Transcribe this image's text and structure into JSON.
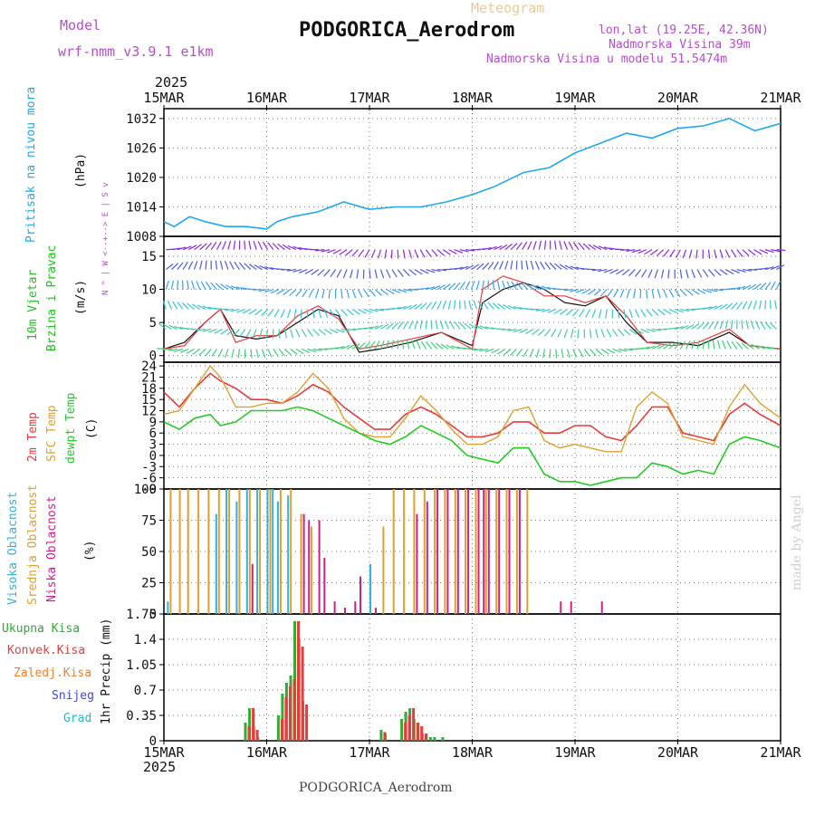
{
  "header": {
    "model_label": "Model",
    "model_name": "wrf-nmm_v3.9.1 e1km",
    "meteogram_label": "Meteogram",
    "station_title": "PODGORICA_Aerodrom",
    "lonlat": "lon,lat (19.25E, 42.36N)",
    "elevation": "Nadmorska Visina 39m",
    "model_elevation": "Nadmorska Visina u modelu 51.5474m",
    "credit": "made by Angel",
    "footer_station": "PODGORICA_Aerodrom"
  },
  "time_axis": {
    "year": "2025",
    "labels": [
      "15MAR",
      "16MAR",
      "17MAR",
      "18MAR",
      "19MAR",
      "20MAR",
      "21MAR"
    ]
  },
  "colors": {
    "pressure": "#1fa8ee",
    "wind_label": "#22c022",
    "temp2m": "#e83c3c",
    "sfc_temp": "#e0a030",
    "dewpoint": "#22cc22",
    "cloud_high": "#33b0e0",
    "cloud_mid": "#e0a030",
    "cloud_low": "#cc2288",
    "precip_total": "#33aa33",
    "precip_conv": "#e83c3c",
    "precip_ice": "#f08030",
    "snow": "#4444dd",
    "grad": "#22bbbb",
    "header_purple": "#b44ed0",
    "meteogram_orange": "#f0c890"
  },
  "chart_data": [
    {
      "type": "line",
      "name": "pressure",
      "ylabel_lines": [
        "Pritisak na nivou mora",
        "(hPa)"
      ],
      "ylim": [
        1008,
        1034
      ],
      "yticks": [
        1008,
        1014,
        1020,
        1026,
        1032
      ],
      "grid": true,
      "x_days": [
        0,
        0.1,
        0.25,
        0.4,
        0.6,
        0.8,
        1.0,
        1.1,
        1.25,
        1.5,
        1.75,
        2.0,
        2.25,
        2.5,
        2.75,
        3.0,
        3.2,
        3.5,
        3.75,
        4.0,
        4.25,
        4.5,
        4.75,
        5.0,
        5.25,
        5.5,
        5.75,
        6.0
      ],
      "series": [
        {
          "values": [
            1011,
            1010,
            1012,
            1011,
            1010,
            1010,
            1009.5,
            1011,
            1012,
            1013,
            1015,
            1013.5,
            1014,
            1014,
            1015,
            1016.5,
            1018,
            1021,
            1022,
            1025,
            1027,
            1029,
            1028,
            1030,
            1030.5,
            1032,
            1029.5,
            1031
          ]
        }
      ]
    },
    {
      "type": "line",
      "name": "wind",
      "ylabel_lines": [
        "10m Vjetar",
        "Brzina i Pravac",
        "(m/s)"
      ],
      "direction_key": "N ^ | W <--+--> E | S v",
      "ylim": [
        -1,
        18
      ],
      "yticks": [
        0,
        5,
        10,
        15
      ],
      "grid": true,
      "x_days": [
        0,
        0.2,
        0.4,
        0.55,
        0.7,
        0.9,
        1.1,
        1.3,
        1.5,
        1.7,
        1.9,
        2.1,
        2.4,
        2.7,
        3.0,
        3.1,
        3.3,
        3.5,
        3.7,
        3.9,
        4.1,
        4.3,
        4.5,
        4.7,
        4.95,
        5.2,
        5.5,
        5.7,
        6.0
      ],
      "series": [
        {
          "values": [
            1,
            2,
            5,
            7,
            3,
            2.5,
            3,
            5,
            7,
            6,
            0.5,
            1,
            2,
            3.5,
            1.5,
            8,
            10,
            11,
            10,
            8,
            7.5,
            9,
            5,
            2,
            2,
            1.5,
            3.5,
            1.5,
            1
          ]
        },
        {
          "values": [
            1,
            1.5,
            5,
            7,
            2,
            3,
            3,
            6,
            7.5,
            5.5,
            1,
            1.5,
            2.5,
            3.5,
            1,
            10,
            12,
            11,
            9,
            9,
            8,
            9,
            6,
            2,
            1.5,
            2,
            4,
            1.5,
            1
          ]
        }
      ]
    },
    {
      "type": "line",
      "name": "temperature",
      "ylabel_lines": [
        "2m Temp",
        "SFC Temp",
        "dewpt Temp",
        "(C)"
      ],
      "ylim": [
        -9,
        25
      ],
      "yticks": [
        -9,
        -6,
        -3,
        0,
        3,
        6,
        9,
        12,
        15,
        18,
        21,
        24
      ],
      "grid": true,
      "x_days": [
        0,
        0.15,
        0.3,
        0.45,
        0.55,
        0.7,
        0.85,
        1.0,
        1.15,
        1.3,
        1.45,
        1.6,
        1.75,
        1.9,
        2.05,
        2.2,
        2.35,
        2.5,
        2.65,
        2.8,
        2.95,
        3.1,
        3.25,
        3.4,
        3.55,
        3.7,
        3.85,
        4.0,
        4.15,
        4.3,
        4.45,
        4.6,
        4.75,
        4.9,
        5.05,
        5.2,
        5.35,
        5.5,
        5.65,
        5.8,
        6.0
      ],
      "series": [
        {
          "name": "2m Temp",
          "values": [
            17,
            13,
            18,
            22,
            20,
            18,
            15,
            15,
            14,
            16,
            19,
            17,
            13,
            10,
            7,
            7,
            11,
            13,
            11,
            8,
            5,
            5,
            6,
            9,
            9,
            6,
            6,
            8,
            8,
            5,
            4,
            8,
            13,
            13,
            6,
            5,
            4,
            11,
            14,
            11,
            8
          ]
        },
        {
          "name": "SFC Temp",
          "values": [
            11,
            12,
            18,
            24,
            21,
            13,
            13,
            14,
            14,
            17,
            22,
            18,
            10,
            6,
            5,
            5,
            10,
            16,
            12,
            7,
            3,
            3,
            5,
            12,
            13,
            4,
            2,
            3,
            2,
            1,
            1,
            13,
            17,
            14,
            5,
            4,
            3,
            13,
            19,
            14,
            10
          ]
        },
        {
          "name": "dewpt Temp",
          "values": [
            9,
            7,
            10,
            11,
            8,
            9,
            12,
            12,
            12,
            13,
            12,
            10,
            8,
            6,
            4,
            3,
            5,
            8,
            6,
            4,
            0,
            -1,
            -2,
            2,
            2,
            -5,
            -7,
            -7,
            -8,
            -7,
            -6,
            -6,
            -2,
            -3,
            -5,
            -4,
            -5,
            3,
            5,
            4,
            2
          ]
        }
      ]
    },
    {
      "type": "bar",
      "name": "cloudiness",
      "ylabel_lines": [
        "Visoka Oblacnost",
        "Srednja Oblacnost",
        "Niska Oblacnost",
        "(%)"
      ],
      "ylim": [
        0,
        100
      ],
      "yticks": [
        0,
        25,
        50,
        75,
        100
      ],
      "grid": true,
      "series": [
        {
          "name": "Visoka Oblacnost",
          "x_days": [
            0.03,
            0.5,
            0.6,
            0.7,
            0.8,
            0.9,
            1.0,
            1.05,
            1.1,
            1.2,
            2.0
          ],
          "values": [
            10,
            80,
            100,
            90,
            100,
            100,
            100,
            100,
            90,
            95,
            40
          ]
        },
        {
          "name": "Srednja Oblacnost",
          "x_days": [
            0.03,
            0.12,
            0.2,
            0.3,
            0.4,
            0.5,
            0.6,
            0.7,
            0.8,
            0.9,
            1.0,
            1.1,
            1.2,
            1.3,
            1.4,
            2.1,
            2.2,
            2.3,
            2.4,
            2.5,
            2.6,
            2.7,
            2.8,
            2.9,
            3.0,
            3.1,
            3.2,
            3.3,
            3.4,
            3.5
          ],
          "values": [
            100,
            100,
            100,
            100,
            100,
            100,
            100,
            100,
            100,
            100,
            100,
            100,
            100,
            80,
            70,
            70,
            100,
            100,
            100,
            100,
            100,
            100,
            100,
            100,
            100,
            100,
            100,
            100,
            100,
            100
          ]
        },
        {
          "name": "Niska Oblacnost",
          "x_days": [
            0.8,
            1.3,
            1.35,
            1.45,
            1.5,
            1.6,
            1.7,
            1.8,
            1.85,
            2.0,
            2.4,
            2.5,
            2.6,
            2.7,
            2.8,
            2.9,
            3.0,
            3.05,
            3.1,
            3.2,
            3.3,
            3.4,
            3.8,
            3.9,
            4.2
          ],
          "values": [
            40,
            80,
            75,
            75,
            45,
            10,
            5,
            10,
            30,
            5,
            80,
            90,
            100,
            100,
            100,
            100,
            100,
            100,
            100,
            100,
            100,
            100,
            10,
            10,
            10
          ]
        }
      ]
    },
    {
      "type": "bar",
      "name": "precipitation",
      "ylabel_lines": [
        "Ukupna Kisa",
        "Konvek.Kisa",
        "Zaledj.Kisa",
        "Snijeg",
        "Grad",
        "1hr Precip (mm)"
      ],
      "ylim": [
        0,
        1.75
      ],
      "yticks": [
        0,
        0.35,
        0.7,
        1.05,
        1.4,
        1.75
      ],
      "grid": true,
      "series": [
        {
          "name": "Ukupna Kisa",
          "x_days": [
            0.78,
            0.82,
            0.86,
            0.9,
            1.1,
            1.14,
            1.18,
            1.22,
            1.26,
            1.3,
            1.34,
            2.1,
            2.14,
            2.3,
            2.34,
            2.38,
            2.42,
            2.46,
            2.5,
            2.54,
            2.58,
            2.62,
            2.7
          ],
          "values": [
            0.25,
            0.45,
            0.2,
            0.05,
            0.35,
            0.65,
            0.8,
            0.9,
            1.65,
            1.4,
            0.55,
            0.15,
            0.1,
            0.3,
            0.4,
            0.45,
            0.3,
            0.25,
            0.1,
            0.1,
            0.05,
            0.05,
            0.05
          ]
        },
        {
          "name": "Konvek.Kisa",
          "x_days": [
            0.78,
            0.82,
            0.86,
            1.1,
            1.14,
            1.18,
            1.22,
            1.26,
            1.3,
            1.34,
            2.1,
            2.3,
            2.34,
            2.38,
            2.42,
            2.46,
            2.5
          ],
          "values": [
            0.2,
            0.45,
            0.15,
            0.3,
            0.6,
            0.75,
            0.85,
            1.65,
            1.3,
            0.5,
            0.12,
            0.25,
            0.35,
            0.45,
            0.25,
            0.2,
            0.1
          ]
        }
      ]
    }
  ]
}
